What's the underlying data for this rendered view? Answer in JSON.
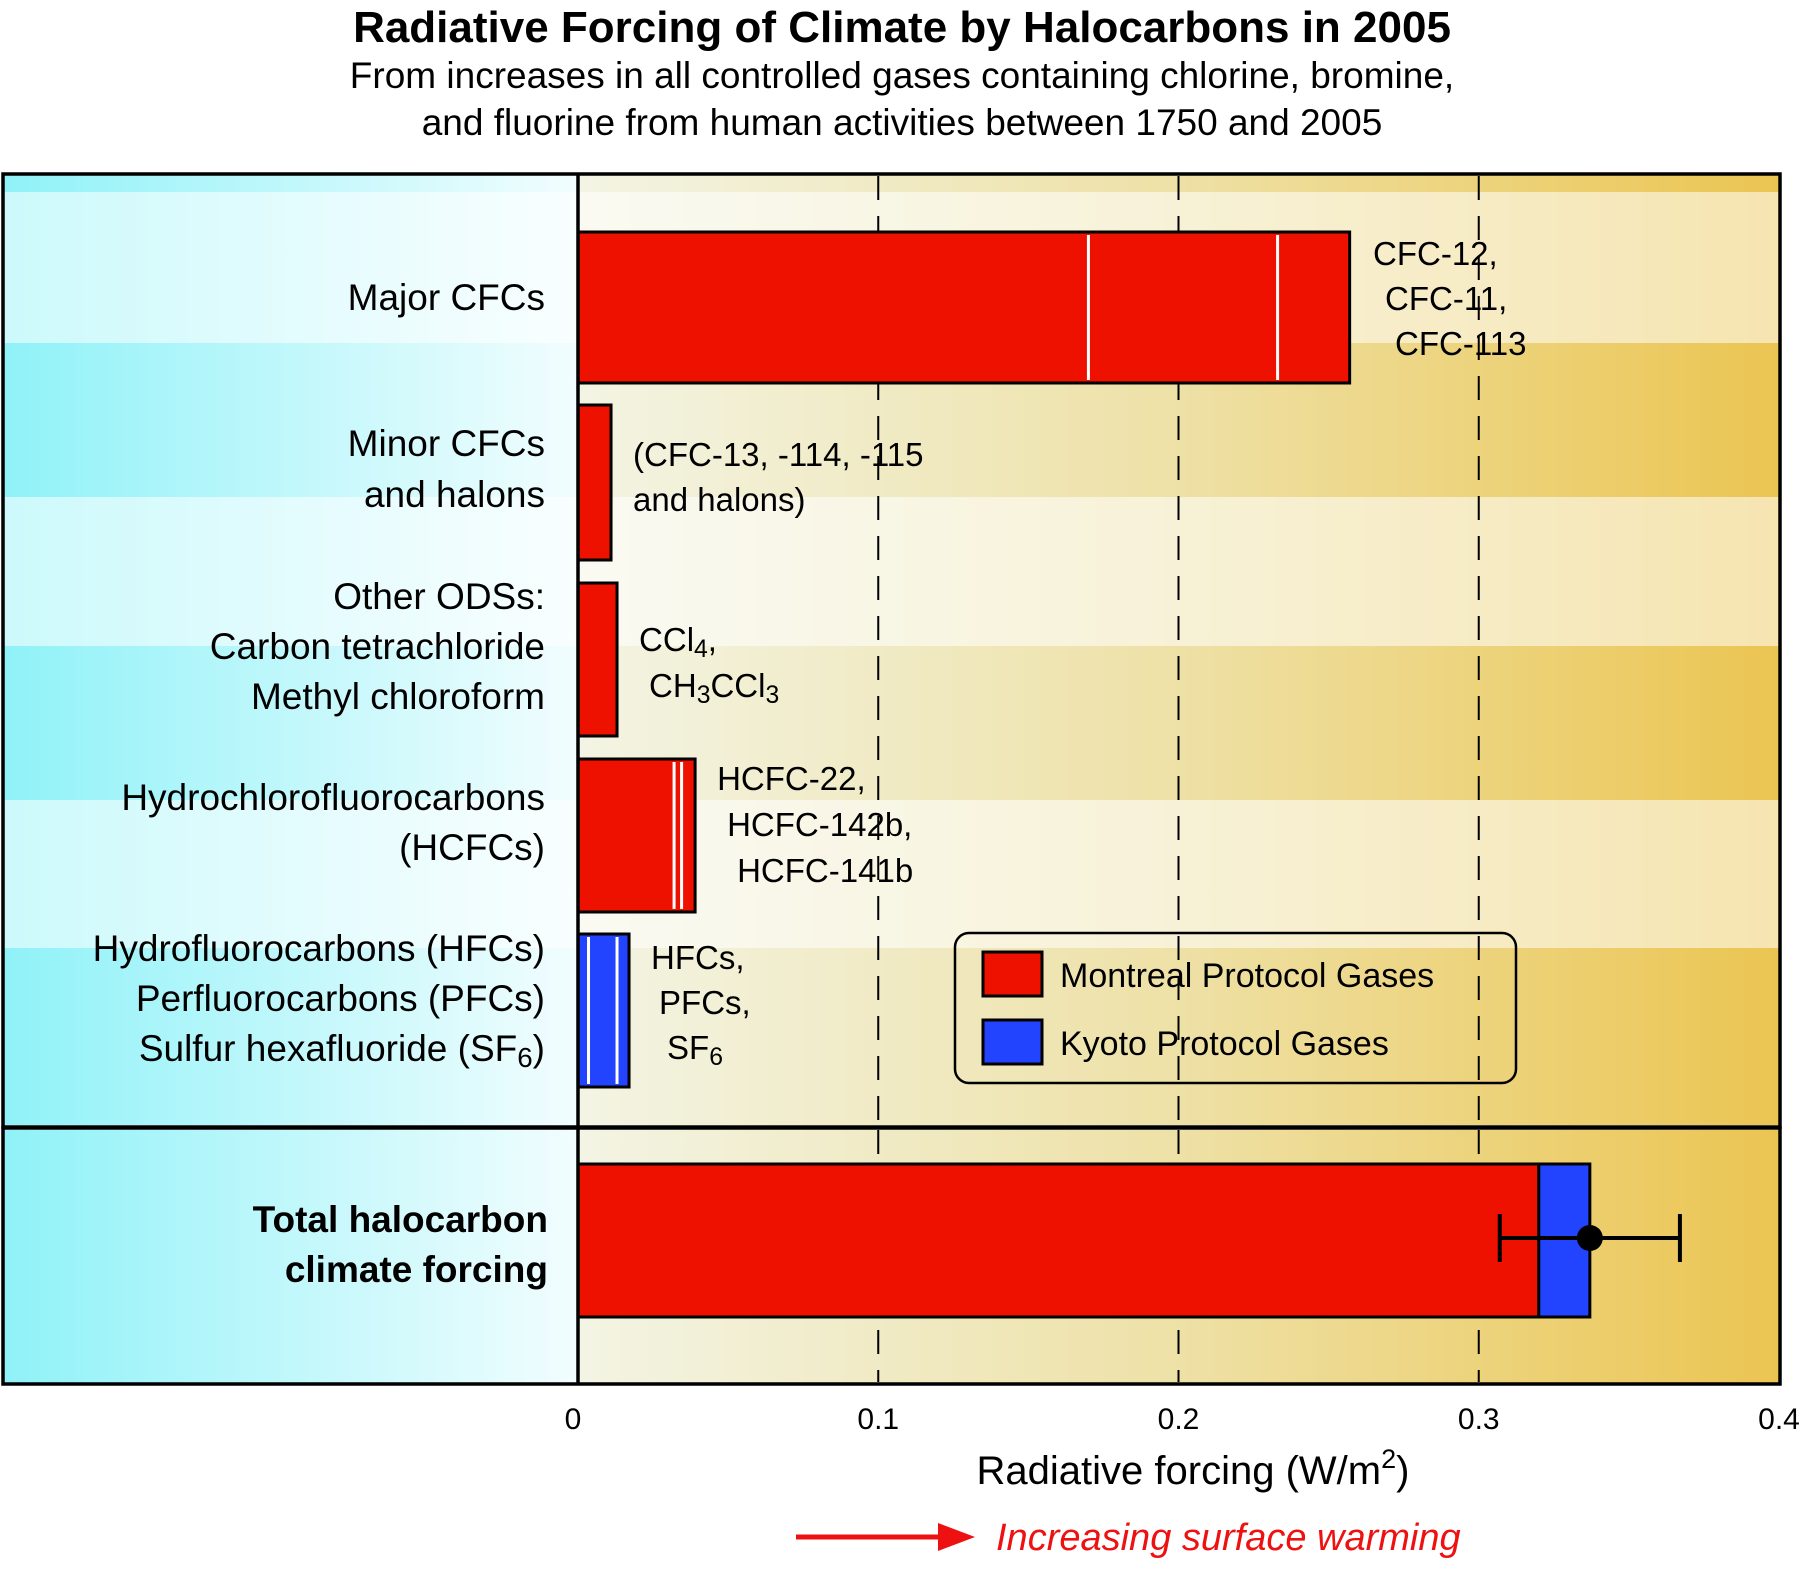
{
  "chart_data": {
    "type": "bar",
    "title": "Radiative Forcing of Climate by Halocarbons in 2005",
    "subtitle_lines": [
      "From increases in all controlled gases containing chlorine, bromine,",
      "and fluorine from human activities between 1750 and 2005"
    ],
    "xlabel": "Radiative forcing (W/m",
    "xlabel_sup": "2",
    "xlabel_end": ")",
    "xlim": [
      0,
      0.4
    ],
    "x_ticks": [
      "0",
      "0.1",
      "0.2",
      "0.3",
      "0.4"
    ],
    "grid": "dashed vertical lines at 0.1, 0.2, 0.3",
    "warming_label": "Increasing surface warming",
    "legend": {
      "placement": "lower-right",
      "entries": [
        {
          "label": "Montreal Protocol Gases",
          "color": "#ee1100"
        },
        {
          "label": "Kyoto Protocol Gases",
          "color": "#2244ff"
        }
      ]
    },
    "colors": {
      "montreal": "#ee1100",
      "kyoto": "#2244ff",
      "panel_left": "#9cf4fa",
      "panel_right": "#ebc552"
    },
    "categories": [
      {
        "label_lines": [
          "Major CFCs"
        ],
        "protocol": "Montreal",
        "value": 0.257,
        "segments": [
          0.17,
          0.063,
          0.024
        ],
        "annotation_lines": [
          "CFC-12,",
          "CFC-11,",
          "CFC-113"
        ]
      },
      {
        "label_lines": [
          "Minor CFCs",
          "and halons"
        ],
        "protocol": "Montreal",
        "value": 0.011,
        "segments": [
          0.011
        ],
        "annotation_lines": [
          "(CFC-13, -114, -115",
          "and halons)"
        ]
      },
      {
        "label_lines": [
          "Other ODSs:",
          "Carbon tetrachloride",
          "Methyl chloroform"
        ],
        "protocol": "Montreal",
        "value": 0.013,
        "segments": [
          0.013
        ],
        "annotation_lines": [
          "CCl4,",
          "CH3CCl3"
        ]
      },
      {
        "label_lines": [
          "Hydrochlorofluorocarbons",
          "(HCFCs)"
        ],
        "protocol": "Montreal",
        "value": 0.039,
        "segments": [
          0.032,
          0.0025,
          0.0045
        ],
        "annotation_lines": [
          "HCFC-22,",
          "HCFC-142b,",
          "HCFC-141b"
        ]
      },
      {
        "label_lines": [
          "Hydrofluorocarbons (HFCs)",
          "Perfluorocarbons (PFCs)",
          "Sulfur hexafluoride (SF6)"
        ],
        "protocol": "Kyoto",
        "value": 0.017,
        "segments": [
          0.0035,
          0.0095,
          0.004
        ],
        "annotation_lines": [
          "HFCs,",
          "PFCs,",
          "SF6"
        ]
      }
    ],
    "total": {
      "label_lines": [
        "Total halocarbon",
        "climate forcing"
      ],
      "montreal": 0.32,
      "kyoto": 0.017,
      "value": 0.337,
      "error_low": 0.307,
      "error_high": 0.367
    }
  }
}
